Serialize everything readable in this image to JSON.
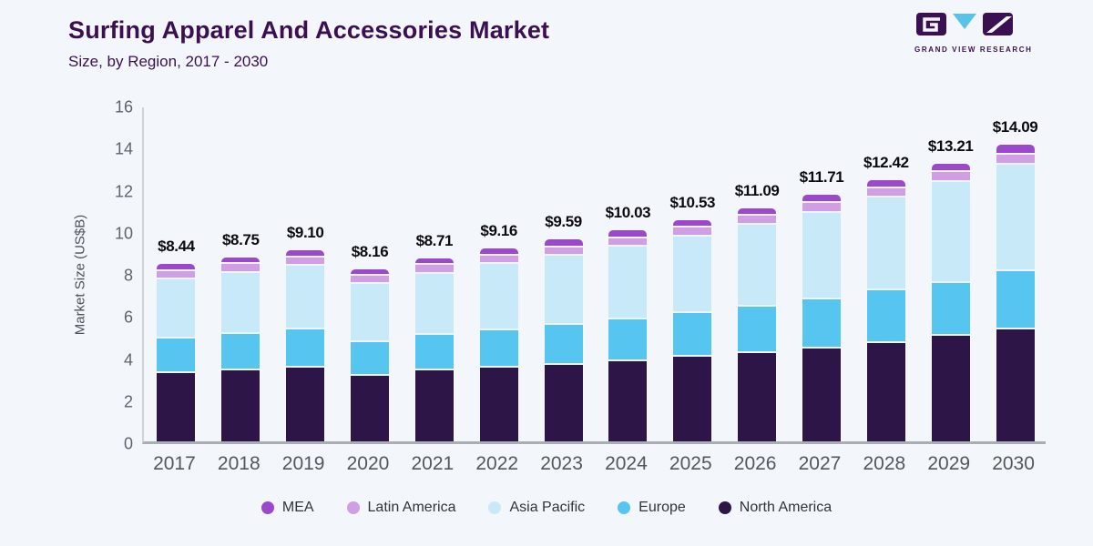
{
  "header": {
    "title": "Surfing Apparel And Accessories Market",
    "subtitle": "Size, by Region, 2017 - 2030"
  },
  "logo": {
    "text": "GRAND VIEW RESEARCH",
    "dark_color": "#3a1053",
    "accent_color": "#58c3ea"
  },
  "chart_data": {
    "type": "bar",
    "stacked": true,
    "title": "Surfing Apparel And Accessories Market Size, by Region, 2017 - 2030",
    "xlabel": "",
    "ylabel": "Market Size (US$B)",
    "ylim": [
      0,
      16
    ],
    "ytick_step": 2,
    "grid": false,
    "legend_position": "bottom",
    "categories": [
      "2017",
      "2018",
      "2019",
      "2020",
      "2021",
      "2022",
      "2023",
      "2024",
      "2025",
      "2026",
      "2027",
      "2028",
      "2029",
      "2030"
    ],
    "series": [
      {
        "name": "North America",
        "color": "#2e1547",
        "values": [
          3.35,
          3.47,
          3.6,
          3.22,
          3.44,
          3.57,
          3.72,
          3.88,
          4.13,
          4.27,
          4.5,
          4.76,
          5.1,
          5.4
        ]
      },
      {
        "name": "Europe",
        "color": "#56c6f0",
        "values": [
          1.62,
          1.72,
          1.8,
          1.6,
          1.7,
          1.78,
          1.92,
          2.02,
          2.04,
          2.2,
          2.32,
          2.49,
          2.53,
          2.78
        ]
      },
      {
        "name": "Asia Pacific",
        "color": "#c7e9f8",
        "values": [
          2.82,
          2.91,
          3.03,
          2.73,
          2.92,
          3.16,
          3.28,
          3.45,
          3.66,
          3.9,
          4.14,
          4.41,
          4.77,
          5.05
        ]
      },
      {
        "name": "Latin America",
        "color": "#d09ee5",
        "values": [
          0.4,
          0.4,
          0.41,
          0.39,
          0.4,
          0.39,
          0.4,
          0.4,
          0.41,
          0.43,
          0.44,
          0.44,
          0.47,
          0.5
        ]
      },
      {
        "name": "MEA",
        "color": "#9b48cd",
        "values": [
          0.25,
          0.25,
          0.26,
          0.22,
          0.25,
          0.26,
          0.27,
          0.28,
          0.29,
          0.29,
          0.31,
          0.32,
          0.34,
          0.36
        ]
      }
    ],
    "totals": [
      8.44,
      8.75,
      9.1,
      8.16,
      8.71,
      9.16,
      9.59,
      10.03,
      10.53,
      11.09,
      11.71,
      12.42,
      13.21,
      14.09
    ],
    "total_labels": [
      "$8.44",
      "$8.75",
      "$9.10",
      "$8.16",
      "$8.71",
      "$9.16",
      "$9.59",
      "$10.03",
      "$10.53",
      "$11.09",
      "$11.71",
      "$12.42",
      "$13.21",
      "$14.09"
    ],
    "legend": [
      "MEA",
      "Latin America",
      "Asia Pacific",
      "Europe",
      "North America"
    ],
    "segment_divider_color": "#eff4f8"
  }
}
